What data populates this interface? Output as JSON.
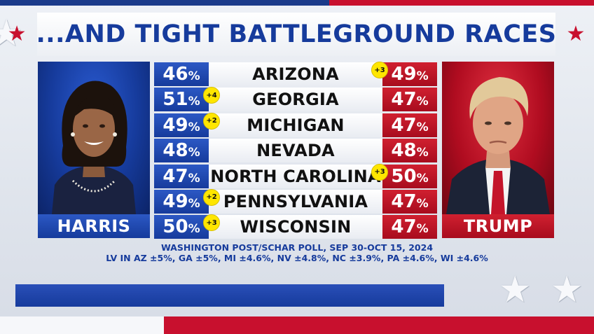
{
  "title": {
    "text": "...AND TIGHT BATTLEGROUND RACES"
  },
  "candidates": {
    "left": {
      "name": "HARRIS",
      "color": "#163b9c"
    },
    "right": {
      "name": "TRUMP",
      "color": "#c8102e"
    }
  },
  "states": [
    {
      "name": "ARIZONA",
      "harris": "46",
      "trump": "49",
      "lead": "+3",
      "leader": "trump"
    },
    {
      "name": "GEORGIA",
      "harris": "51",
      "trump": "47",
      "lead": "+4",
      "leader": "harris"
    },
    {
      "name": "MICHIGAN",
      "harris": "49",
      "trump": "47",
      "lead": "+2",
      "leader": "harris"
    },
    {
      "name": "NEVADA",
      "harris": "48",
      "trump": "48",
      "lead": "",
      "leader": "tie"
    },
    {
      "name": "NORTH CAROLINA",
      "harris": "47",
      "trump": "50",
      "lead": "+3",
      "leader": "trump"
    },
    {
      "name": "PENNSYLVANIA",
      "harris": "49",
      "trump": "47",
      "lead": "+2",
      "leader": "harris"
    },
    {
      "name": "WISCONSIN",
      "harris": "50",
      "trump": "47",
      "lead": "+3",
      "leader": "harris"
    }
  ],
  "percent_symbol": "%",
  "source": {
    "line1": "WASHINGTON POST/SCHAR POLL, SEP 30-OCT 15, 2024",
    "line2": "LV IN AZ ±5%, GA ±5%, MI ±4.6%, NV ±4.8%, NC ±3.9%, PA ±4.6%, WI ±4.6%"
  },
  "colors": {
    "navy": "#163b9c",
    "red": "#c8102e",
    "lead_badge": "#ffe600"
  }
}
